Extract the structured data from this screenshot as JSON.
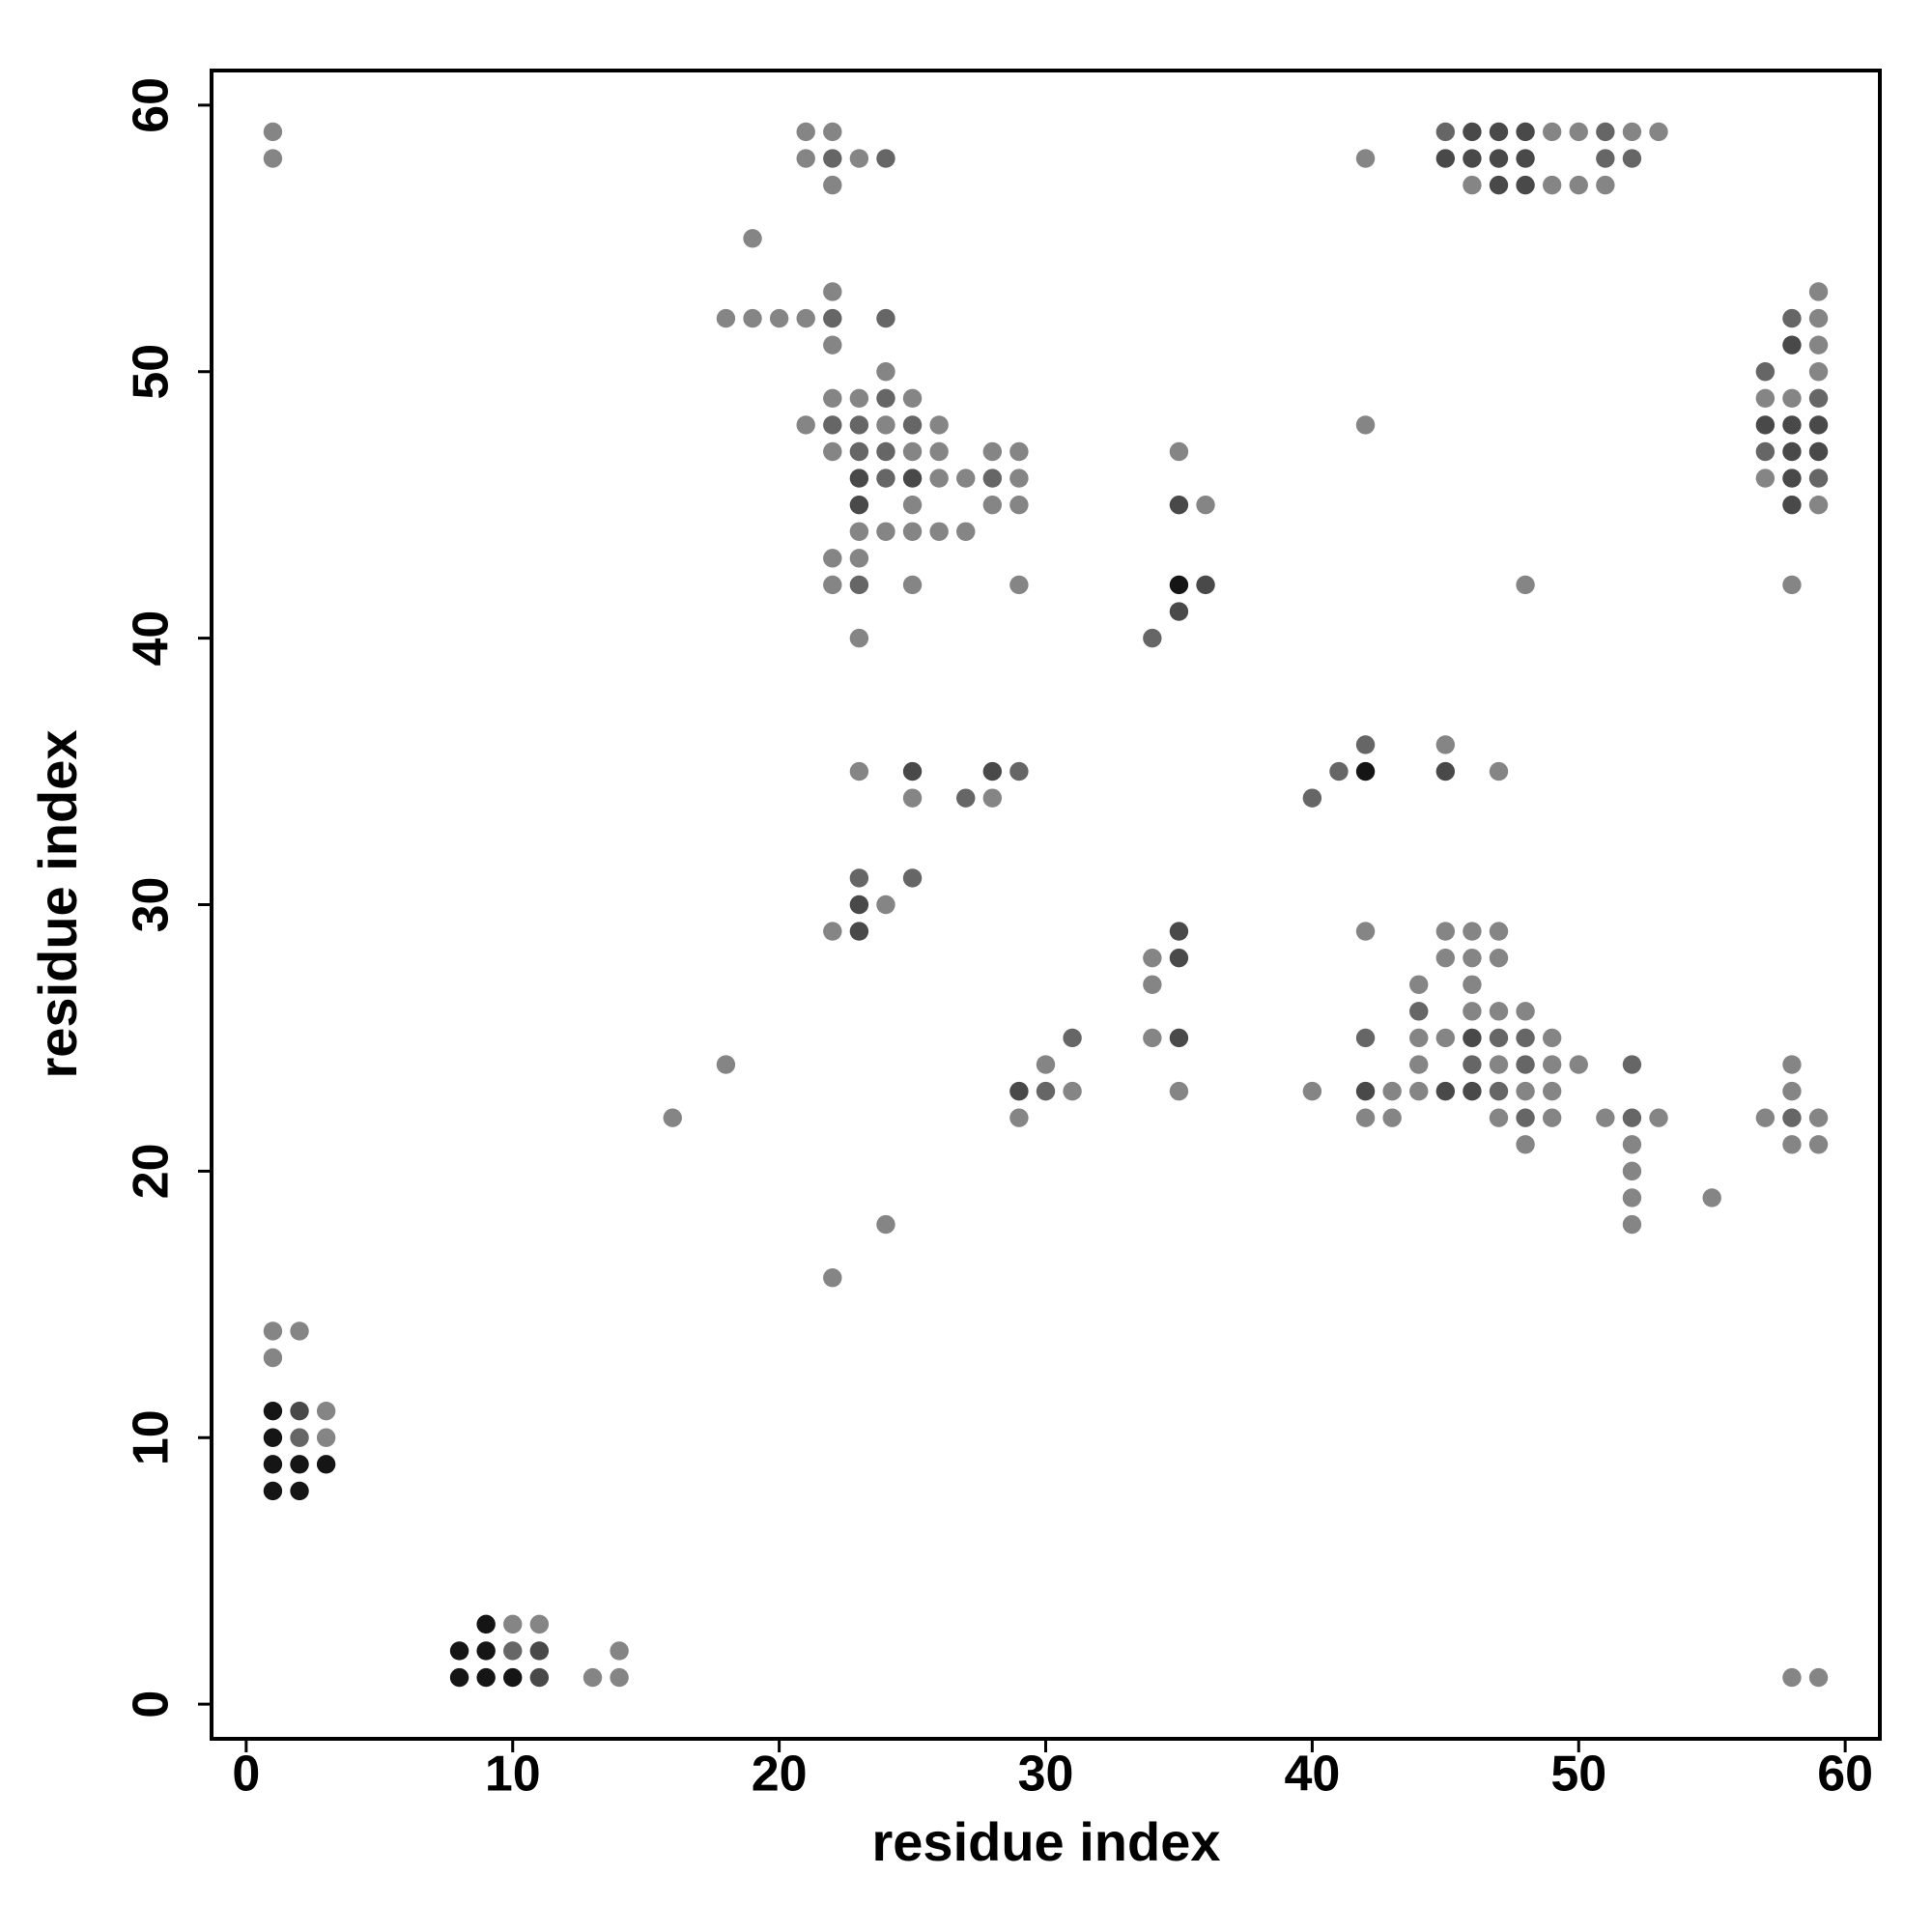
{
  "chart_data": {
    "type": "scatter",
    "x_label": "residue index",
    "y_label": "residue index",
    "xlim": [
      -1.3,
      61.3
    ],
    "ylim": [
      -1.3,
      61.3
    ],
    "xticks": [
      0,
      10,
      20,
      30,
      40,
      50,
      60
    ],
    "yticks": [
      0,
      10,
      20,
      30,
      40,
      50,
      60
    ],
    "series": [
      {
        "color": "#858585",
        "x": [
          1,
          21,
          22,
          49,
          50,
          52,
          53,
          1,
          21,
          23,
          42,
          22,
          46,
          49,
          50,
          51,
          19,
          22,
          59,
          18,
          19,
          20,
          21,
          59,
          22,
          59,
          24,
          59,
          22,
          23,
          25,
          57,
          58,
          21,
          24,
          26,
          42,
          22,
          25,
          26,
          28,
          29,
          35,
          26,
          27,
          29,
          57,
          25,
          28,
          29,
          36,
          59,
          23,
          24,
          25,
          26,
          27,
          22,
          23,
          22,
          25,
          29,
          48,
          58,
          23,
          45,
          23,
          47,
          25,
          28,
          24,
          22,
          42,
          45,
          46,
          47,
          34,
          45,
          46,
          47,
          34,
          44,
          46,
          46,
          47,
          48,
          34,
          44,
          45,
          49,
          18,
          30,
          44,
          47,
          49,
          50,
          58,
          31,
          35,
          40,
          43,
          44,
          48,
          49,
          58,
          16,
          29,
          42,
          43,
          47,
          49,
          51,
          53,
          57,
          59,
          48,
          52,
          58,
          59,
          52,
          52,
          55,
          24,
          52,
          22,
          1,
          2,
          1,
          3,
          3,
          10,
          11,
          14,
          13,
          14,
          58,
          59
        ],
        "y": [
          59,
          59,
          59,
          59,
          59,
          59,
          59,
          58,
          58,
          58,
          58,
          57,
          57,
          57,
          57,
          57,
          55,
          53,
          53,
          52,
          52,
          52,
          52,
          52,
          51,
          51,
          50,
          50,
          49,
          49,
          49,
          49,
          49,
          48,
          48,
          48,
          48,
          47,
          47,
          47,
          47,
          47,
          47,
          46,
          46,
          46,
          46,
          45,
          45,
          45,
          45,
          45,
          44,
          44,
          44,
          44,
          44,
          43,
          43,
          42,
          42,
          42,
          42,
          42,
          40,
          36,
          35,
          35,
          34,
          34,
          30,
          29,
          29,
          29,
          29,
          29,
          28,
          28,
          28,
          28,
          27,
          27,
          27,
          26,
          26,
          26,
          25,
          25,
          25,
          25,
          24,
          24,
          24,
          24,
          24,
          24,
          24,
          23,
          23,
          23,
          23,
          23,
          23,
          23,
          23,
          22,
          22,
          22,
          22,
          22,
          22,
          22,
          22,
          22,
          22,
          21,
          21,
          21,
          21,
          20,
          19,
          19,
          18,
          18,
          16,
          14,
          14,
          13,
          11,
          10,
          3,
          3,
          2,
          1,
          1,
          1,
          1
        ]
      },
      {
        "color": "#666666",
        "x": [
          45,
          51,
          22,
          24,
          51,
          52,
          22,
          24,
          58,
          57,
          24,
          59,
          22,
          23,
          25,
          23,
          24,
          57,
          24,
          28,
          59,
          23,
          34,
          42,
          29,
          41,
          27,
          40,
          23,
          25,
          31,
          42,
          47,
          48,
          44,
          46,
          48,
          52,
          30,
          47,
          48,
          52,
          58,
          2,
          10
        ],
        "y": [
          59,
          59,
          58,
          58,
          58,
          58,
          52,
          52,
          52,
          50,
          49,
          49,
          48,
          48,
          48,
          47,
          47,
          47,
          46,
          46,
          46,
          42,
          40,
          36,
          35,
          35,
          34,
          34,
          31,
          31,
          25,
          25,
          25,
          25,
          26,
          24,
          24,
          24,
          23,
          23,
          22,
          22,
          22,
          10,
          2
        ]
      },
      {
        "color": "#494949",
        "x": [
          46,
          47,
          48,
          45,
          46,
          47,
          48,
          47,
          48,
          58,
          57,
          58,
          59,
          58,
          59,
          23,
          25,
          58,
          23,
          35,
          58,
          36,
          35,
          25,
          28,
          45,
          23,
          23,
          35,
          35,
          35,
          46,
          29,
          42,
          45,
          46,
          2,
          11,
          11
        ],
        "y": [
          59,
          59,
          59,
          58,
          58,
          58,
          58,
          57,
          57,
          51,
          48,
          48,
          48,
          47,
          47,
          46,
          46,
          46,
          45,
          45,
          45,
          42,
          41,
          35,
          35,
          35,
          30,
          29,
          29,
          28,
          25,
          25,
          23,
          23,
          23,
          23,
          11,
          2,
          1
        ]
      },
      {
        "color": "#151515",
        "x": [
          35,
          42,
          1,
          1,
          1,
          2,
          3,
          1,
          2,
          9,
          8,
          9,
          8,
          9,
          10
        ],
        "y": [
          42,
          35,
          11,
          10,
          9,
          9,
          9,
          8,
          8,
          3,
          2,
          2,
          1,
          1,
          1
        ]
      }
    ]
  }
}
